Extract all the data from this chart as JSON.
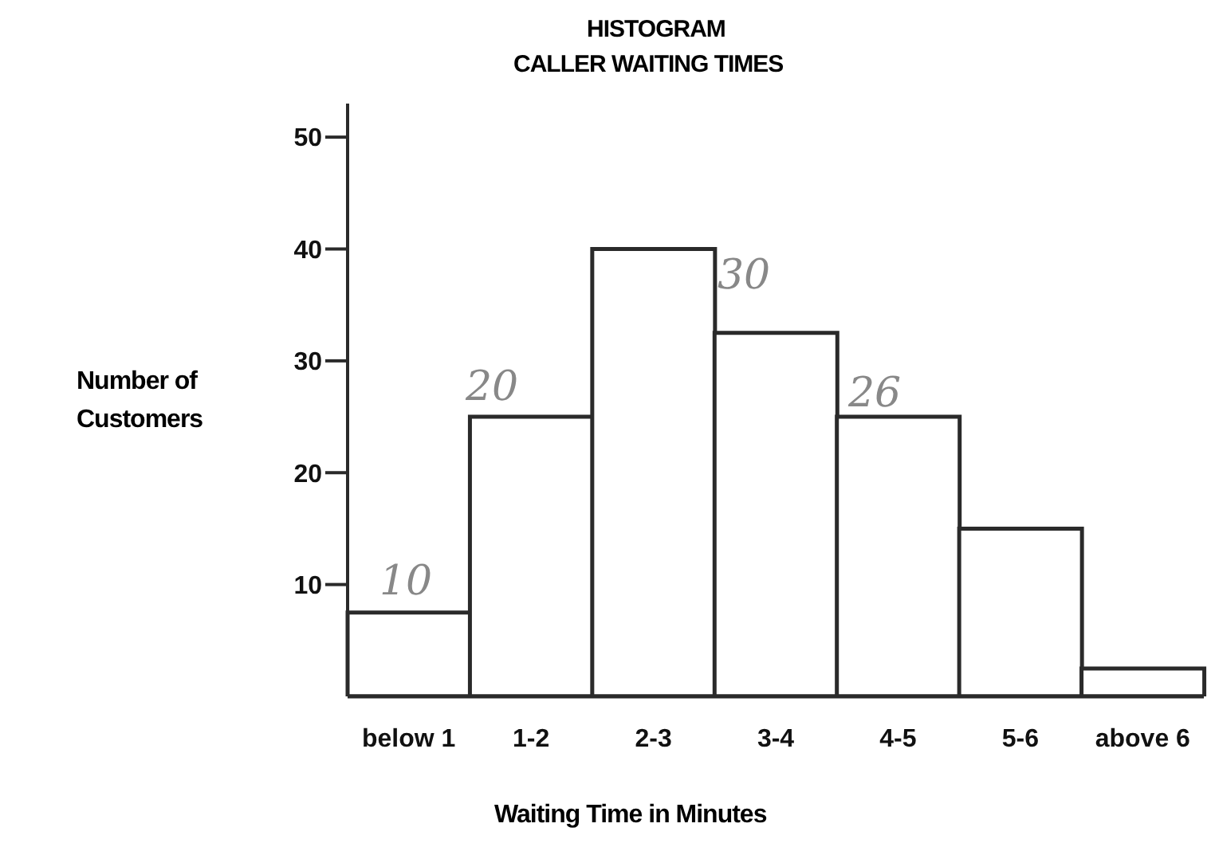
{
  "chart_data": {
    "type": "bar",
    "title": "HISTOGRAM",
    "subtitle": "CALLER WAITING TIMES",
    "xlabel": "Waiting Time in Minutes",
    "ylabel": "Number of Customers",
    "categories": [
      "below 1",
      "1-2",
      "2-3",
      "3-4",
      "4-5",
      "5-6",
      "above 6"
    ],
    "values": [
      7.5,
      25,
      40,
      32.5,
      25,
      15,
      2.5
    ],
    "color": "#ffffff",
    "ylim": [
      0,
      53
    ],
    "yticks": [
      10,
      20,
      30,
      40,
      50
    ],
    "grid": false,
    "legend": false,
    "annotations": [
      "10",
      "20",
      "30",
      "26"
    ]
  }
}
